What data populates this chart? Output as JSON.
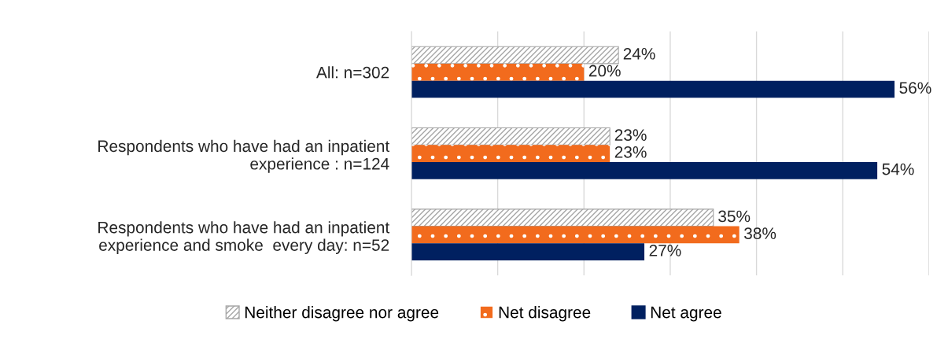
{
  "chart_data": {
    "type": "bar",
    "orientation": "horizontal",
    "categories": [
      "All: n=302",
      "Respondents who have had an inpatient\nexperience : n=124",
      "Respondents who have had an inpatient\nexperience and smoke  every day: n=52"
    ],
    "series": [
      {
        "name": "Neither disagree nor agree",
        "color": "#a6a6a6",
        "values": [
          24,
          23,
          35
        ],
        "value_labels": [
          "24%",
          "23%",
          "35%"
        ]
      },
      {
        "name": "Net disagree",
        "color": "#f26b1d",
        "values": [
          20,
          23,
          38
        ],
        "value_labels": [
          "20%",
          "23%",
          "38%"
        ]
      },
      {
        "name": "Net agree",
        "color": "#002060",
        "values": [
          56,
          54,
          27
        ],
        "value_labels": [
          "56%",
          "54%",
          "27%"
        ]
      }
    ],
    "xlim": [
      0,
      60
    ],
    "xticks": [
      {
        "value": 0,
        "label": null
      },
      {
        "value": 10,
        "label": null
      },
      {
        "value": 20,
        "label": null
      },
      {
        "value": 30,
        "label": null
      },
      {
        "value": 40,
        "label": null
      },
      {
        "value": 50,
        "label": null
      },
      {
        "value": 60,
        "label": null
      }
    ],
    "grid": "x",
    "tick_labels": "y",
    "legend": "bottom"
  }
}
